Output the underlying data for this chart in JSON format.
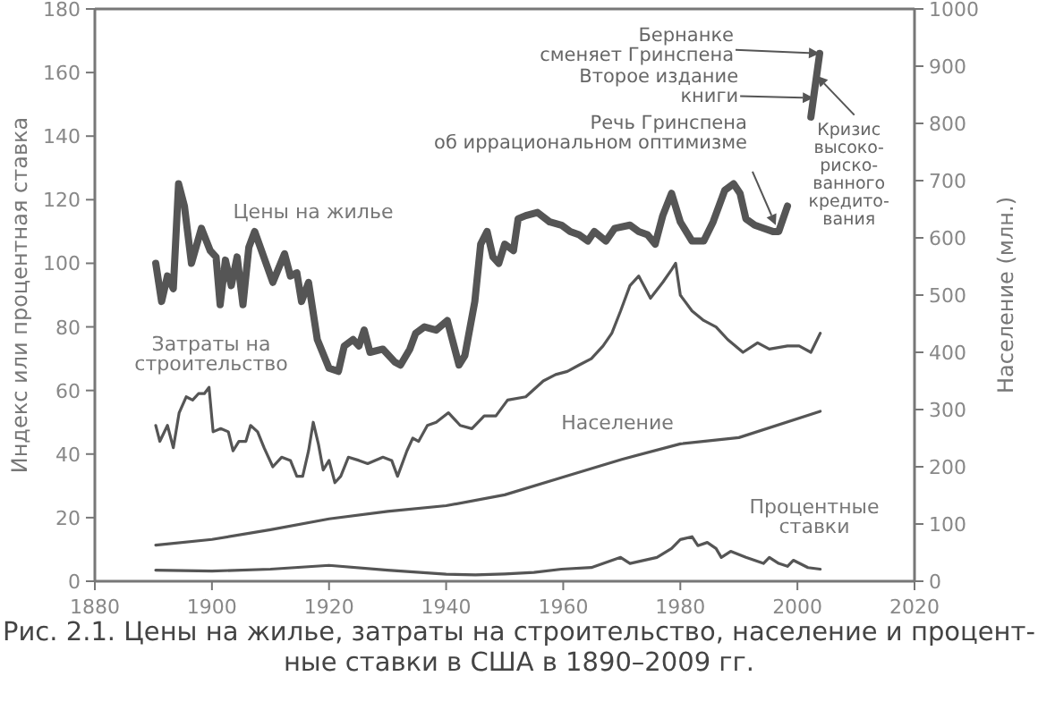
{
  "chart_data": {
    "type": "line",
    "ylabel": "Индекс или процентная ставка",
    "y2label": "Население (млн.)",
    "xlim": [
      1880,
      2020
    ],
    "xticks": [
      1880,
      1900,
      1920,
      1940,
      1960,
      1980,
      2000,
      2020
    ],
    "ylim": [
      0,
      180
    ],
    "yticks": [
      0,
      20,
      40,
      60,
      80,
      100,
      120,
      140,
      160,
      180
    ],
    "y2lim": [
      0,
      1000
    ],
    "y2ticks": [
      0,
      100,
      200,
      300,
      400,
      500,
      600,
      700,
      800,
      900,
      1000
    ],
    "grid": false,
    "marker": "none",
    "line_style": "solid",
    "series": [
      {
        "name": "Цены на жилье",
        "color": "#555555",
        "x": [
          1890.4,
          1891.4,
          1892.4,
          1893.4,
          1894.3,
          1895.3,
          1896.5,
          1898.2,
          1899.7,
          1900.7,
          1901.4,
          1902.3,
          1903.3,
          1904.3,
          1905.3,
          1906.3,
          1907.3,
          1910.4,
          1912.4,
          1913.4,
          1914.5,
          1915.3,
          1916.5,
          1918,
          1920,
          1921.6,
          1922.6,
          1924.1,
          1925.1,
          1926,
          1927,
          1929.2,
          1931.2,
          1932.2,
          1933.8,
          1934.8,
          1936.3,
          1938.3,
          1940.2,
          1942.2,
          1943.2,
          1944.9,
          1945.9,
          1947,
          1948,
          1949,
          1950,
          1951.5,
          1952.3,
          1953.6,
          1955.6,
          1957.7,
          1959.7,
          1961.2,
          1962.7,
          1964.2,
          1965.3,
          1967.3,
          1968.8,
          1971.4,
          1972.9,
          1974.4,
          1975.7,
          1977,
          1978.5,
          1980,
          1982,
          1984,
          1985.6,
          1987.6,
          1989.1,
          1990.2,
          1991.2,
          1992.7,
          1994.2,
          1995.8,
          1996.8,
          1998.3,
          2000.3,
          2002.3,
          2003.8
        ],
        "values": [
          100,
          88,
          96,
          92,
          125,
          118,
          100,
          111,
          104,
          102,
          87,
          101,
          93,
          102,
          87,
          105,
          110,
          94,
          103,
          96,
          97,
          88,
          94,
          76,
          67,
          66,
          74,
          76,
          74,
          79,
          72,
          73,
          69,
          68,
          73,
          78,
          80,
          79,
          82,
          68,
          71,
          88,
          106,
          110,
          102,
          100,
          106,
          104,
          114,
          115,
          116,
          113,
          112,
          110,
          109,
          107,
          110,
          107,
          111,
          112,
          110,
          109,
          106,
          115,
          122,
          113,
          107,
          107,
          113,
          123,
          125,
          122,
          114,
          112,
          111,
          110,
          110,
          118,
          null,
          146,
          166
        ]
      },
      {
        "name": "Затраты на строительство",
        "color": "#555555",
        "x": [
          1890.4,
          1891.1,
          1892.4,
          1893.4,
          1894.4,
          1895.6,
          1896.7,
          1897.7,
          1898.7,
          1899.5,
          1900.2,
          1901.5,
          1902.8,
          1903.6,
          1904.6,
          1905.8,
          1906.6,
          1907.8,
          1908.9,
          1910.4,
          1911.9,
          1913.4,
          1914.5,
          1915.5,
          1916.5,
          1917.3,
          1918.2,
          1919,
          1920,
          1921,
          1922,
          1923.3,
          1925.1,
          1926.6,
          1929.2,
          1930.7,
          1931.7,
          1933.3,
          1934.3,
          1935.3,
          1936.8,
          1938.3,
          1940.4,
          1942.4,
          1944.4,
          1946.5,
          1948.5,
          1950.5,
          1953.6,
          1956.6,
          1958.7,
          1960.7,
          1962.7,
          1964.8,
          1966.8,
          1968.3,
          1969.8,
          1971.4,
          1972.9,
          1974.9,
          1977,
          1978.5,
          1979.2,
          1980,
          1982,
          1984,
          1986.1,
          1988.1,
          1990.7,
          1993.2,
          1995.2,
          1998.3,
          2000.3,
          2002.3,
          2003.9
        ],
        "values": [
          49,
          44,
          49,
          42,
          53,
          58,
          57,
          59,
          59,
          61,
          47,
          48,
          47,
          41,
          44,
          44,
          49,
          47,
          42,
          36,
          39,
          38,
          33,
          33,
          41,
          50,
          43,
          35,
          38,
          31,
          33,
          39,
          38,
          37,
          39,
          38,
          33,
          41,
          45,
          44,
          49,
          50,
          53,
          49,
          48,
          52,
          52,
          57,
          58,
          63,
          65,
          66,
          68,
          70,
          74,
          78,
          85,
          93,
          96,
          89,
          94,
          98,
          100,
          90,
          85,
          82,
          80,
          76,
          72,
          75,
          73,
          74,
          74,
          72,
          78
        ]
      },
      {
        "name": "Население",
        "color": "#555555",
        "axis": "y2",
        "x": [
          1890.4,
          1900,
          1910,
          1920,
          1930,
          1940,
          1950,
          1960,
          1970,
          1980,
          1990,
          2003.9
        ],
        "values": [
          63,
          73,
          90,
          109,
          122,
          132,
          151,
          182,
          213,
          240,
          251,
          297
        ]
      },
      {
        "name": "Процентные ставки",
        "color": "#555555",
        "x": [
          1890.4,
          1900,
          1910,
          1920,
          1930,
          1940,
          1945,
          1950,
          1955,
          1959.7,
          1964.8,
          1969.8,
          1971.4,
          1976,
          1978.5,
          1980,
          1982,
          1983,
          1984.6,
          1986.1,
          1987,
          1988.6,
          1991.2,
          1994.2,
          1995.2,
          1996.8,
          1998.3,
          1999.3,
          2001.8,
          2003.9
        ],
        "values": [
          3.5,
          3.2,
          3.8,
          5,
          3.5,
          2.2,
          2,
          2.3,
          2.8,
          3.8,
          4.3,
          7.5,
          5.6,
          7.5,
          10.3,
          13.1,
          14,
          11.2,
          12.2,
          10.3,
          7.5,
          9.4,
          7.5,
          5.6,
          7.5,
          5.6,
          4.7,
          6.6,
          4.3,
          3.8
        ]
      }
    ],
    "annotations": [
      "Рис. 2.1. Цены на жилье, затраты на строительство, население и процент-\nные ставки в США в 1890–2009 гг.",
      {
        "text": "Речь Гринспена\nоб иррациональном оптимизме",
        "x": 1996.3,
        "y": 112
      },
      "Второе издание\nкниги",
      "Бернанке\nсменяет Гринспена",
      {
        "text": "Кризис\nвысоко-\nриско-\nванного\nкредито-\nвания",
        "x": 2003.3,
        "y": 159
      }
    ]
  }
}
